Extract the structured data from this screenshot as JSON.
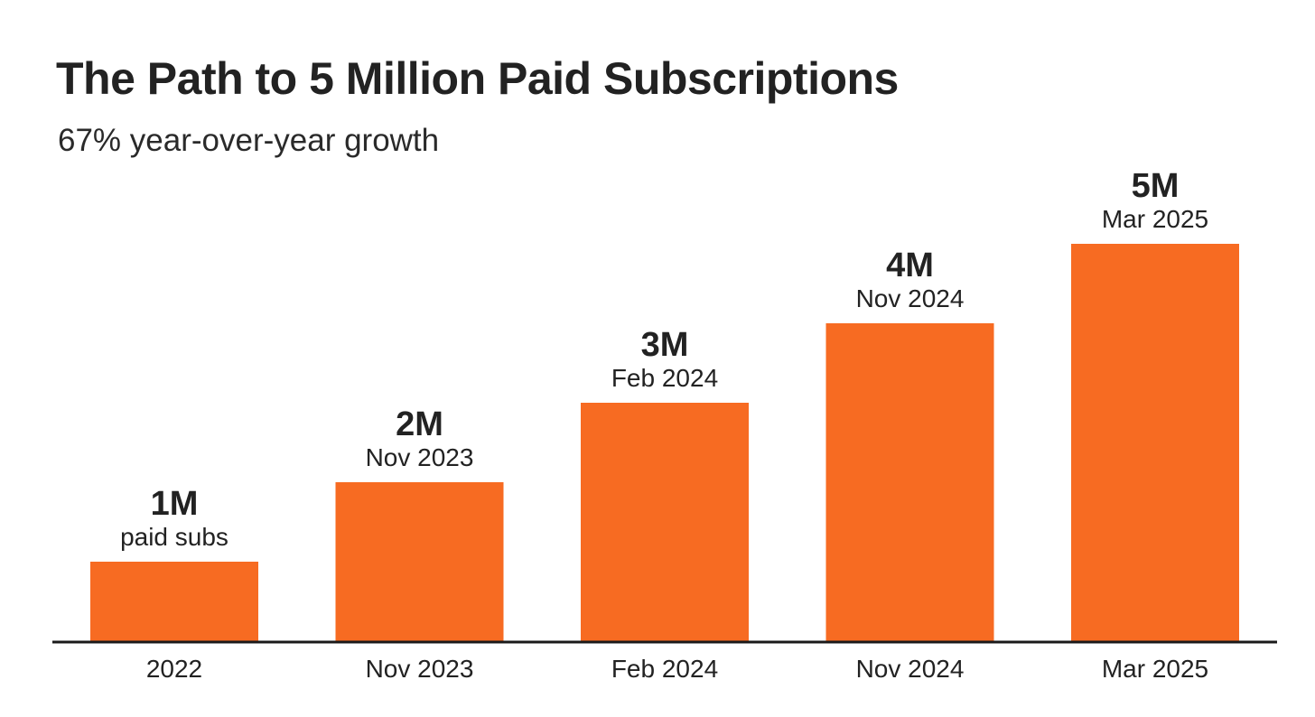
{
  "chart_data": {
    "type": "bar",
    "title": "The Path to 5 Million Paid Subscriptions",
    "subtitle": "67% year-over-year growth",
    "categories": [
      "2022",
      "Nov 2023",
      "Feb 2024",
      "Nov 2024",
      "Mar 2025"
    ],
    "values": [
      1,
      2,
      3,
      4,
      5
    ],
    "unit": "M",
    "value_labels": [
      "1M",
      "2M",
      "3M",
      "4M",
      "5M"
    ],
    "bar_captions": [
      "paid subs",
      "Nov 2023",
      "Feb 2024",
      "Nov 2024",
      "Mar 2025"
    ],
    "xlabel": "",
    "ylabel": "",
    "ylim": [
      0,
      5
    ],
    "grid": false,
    "legend": "none",
    "colors": {
      "bar": "#f76b22",
      "baseline": "#1a1a1a",
      "text": "#222222"
    }
  }
}
